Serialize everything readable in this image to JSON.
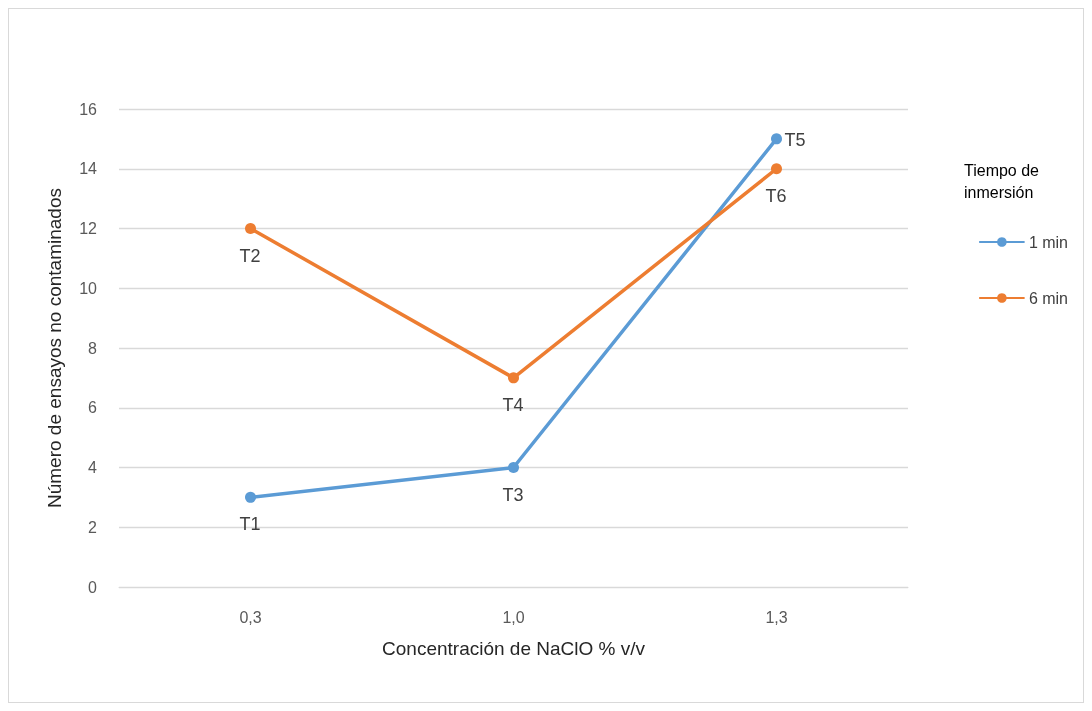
{
  "chart_data": {
    "type": "line",
    "xlabel": "Concentración de NaClO % v/v",
    "ylabel": "Número de ensayos no contaminados",
    "legend_title": "Tiempo de inmersión",
    "categories": [
      "0,3",
      "1,0",
      "1,3"
    ],
    "series": [
      {
        "name": "1 min",
        "color": "#5b9bd5",
        "values": [
          3,
          4,
          15
        ]
      },
      {
        "name": "6 min",
        "color": "#ed7d31",
        "values": [
          12,
          7,
          14
        ]
      }
    ],
    "ylim": [
      0,
      16
    ],
    "yticks": [
      0,
      2,
      4,
      6,
      8,
      10,
      12,
      14,
      16
    ],
    "grid": "y",
    "legend": "right",
    "marker": "circle",
    "line_style": "solid",
    "annotations": [
      {
        "text": "T1",
        "x": "0,3",
        "y": 3
      },
      {
        "text": "T2",
        "x": "0,3",
        "y": 12
      },
      {
        "text": "T3",
        "x": "1,0",
        "y": 4
      },
      {
        "text": "T4",
        "x": "1,0",
        "y": 7
      },
      {
        "text": "T5",
        "x": "1,3",
        "y": 15
      },
      {
        "text": "T6",
        "x": "1,3",
        "y": 14
      }
    ]
  }
}
